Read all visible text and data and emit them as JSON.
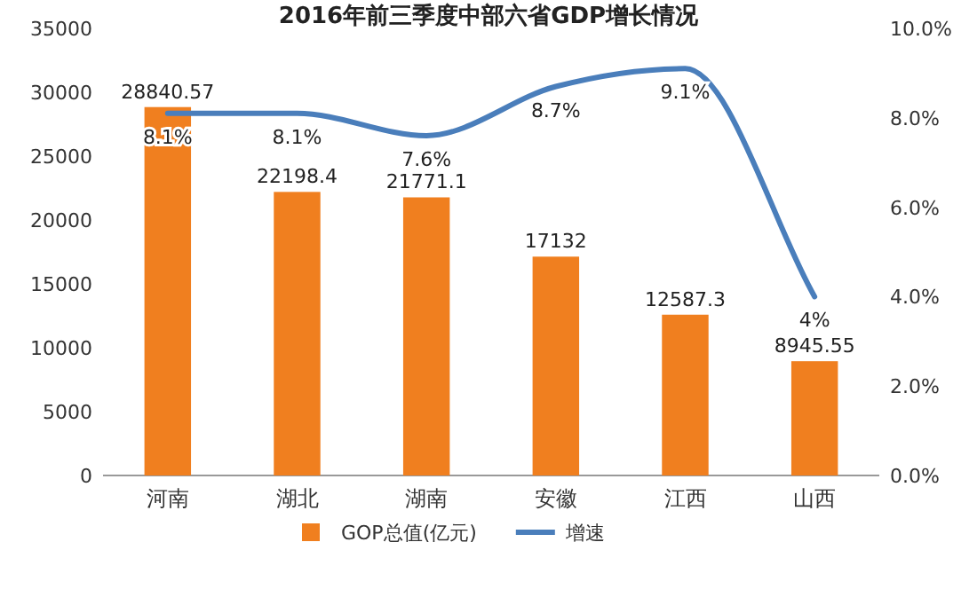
{
  "chart_data": {
    "type": "bar",
    "title": "2016年前三季度中部六省GDP增长情况",
    "categories": [
      "河南",
      "湖北",
      "湖南",
      "安徽",
      "江西",
      "山西"
    ],
    "series": [
      {
        "name": "GOP总值(亿元)",
        "color": "#f07f1f",
        "values": [
          28840.57,
          22198.4,
          21771.1,
          17132,
          12587.3,
          8945.55
        ],
        "value_labels": [
          "28840.57",
          "22198.4",
          "21771.1",
          "17132",
          "12587.3",
          "8945.55"
        ]
      },
      {
        "name": "增速",
        "type": "line",
        "axis": "y2",
        "color": "#4a7ebb",
        "values": [
          8.1,
          8.1,
          7.6,
          8.7,
          9.1,
          4
        ],
        "value_labels": [
          "8.1%",
          "8.1%",
          "7.6%",
          "8.7%",
          "9.1%",
          "4%"
        ]
      }
    ],
    "ylim": [
      0,
      35000
    ],
    "yticks": [
      0,
      5000,
      10000,
      15000,
      20000,
      25000,
      30000,
      35000
    ],
    "y2lim": [
      0,
      10
    ],
    "y2ticks": [
      {
        "value": 0,
        "label": "0.0%"
      },
      {
        "value": 2,
        "label": "2.0%"
      },
      {
        "value": 4,
        "label": "4.0%"
      },
      {
        "value": 6,
        "label": "6.0%"
      },
      {
        "value": 8,
        "label": "8.0%"
      },
      {
        "value": 10,
        "label": "10.0%"
      }
    ],
    "legend": "bottom",
    "grid": false,
    "line_style": "solid"
  }
}
